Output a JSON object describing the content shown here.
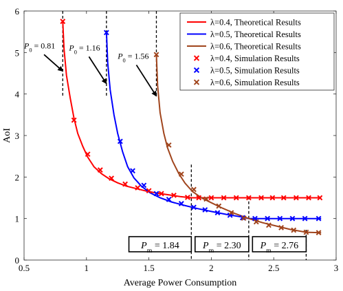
{
  "chart_data": {
    "type": "line",
    "xlabel": "Average Power Consumption",
    "ylabel": "AoI",
    "xlim": [
      0.5,
      3
    ],
    "ylim": [
      0,
      6
    ],
    "xticks": [
      0.5,
      1,
      1.5,
      2,
      2.5,
      3
    ],
    "xtick_labels": [
      "0.5",
      "1",
      "1.5",
      "2",
      "2.5",
      "3"
    ],
    "yticks": [
      0,
      1,
      2,
      3,
      4,
      5,
      6
    ],
    "ytick_labels": [
      "0",
      "1",
      "2",
      "3",
      "4",
      "5",
      "6"
    ],
    "grid": false,
    "legend_position": "top-right",
    "theory": [
      {
        "name": "λ=0.4, Theoretical Results",
        "color": "#ff0000",
        "x": [
          0.81,
          0.82,
          0.84,
          0.87,
          0.9,
          0.93,
          0.97,
          1.01,
          1.06,
          1.12,
          1.18,
          1.25,
          1.32,
          1.4,
          1.48,
          1.57,
          1.66,
          1.75,
          1.84,
          2.0,
          2.3,
          2.6,
          2.88
        ],
        "y": [
          5.75,
          5.1,
          4.45,
          3.9,
          3.42,
          3.05,
          2.74,
          2.48,
          2.25,
          2.08,
          1.96,
          1.86,
          1.78,
          1.72,
          1.66,
          1.61,
          1.57,
          1.53,
          1.5,
          1.5,
          1.5,
          1.5,
          1.5
        ]
      },
      {
        "name": "λ=0.5, Theoretical Results",
        "color": "#0000ff",
        "x": [
          1.16,
          1.17,
          1.19,
          1.22,
          1.25,
          1.29,
          1.33,
          1.38,
          1.44,
          1.51,
          1.59,
          1.68,
          1.78,
          1.89,
          2.0,
          2.12,
          2.24,
          2.3,
          2.5,
          2.7,
          2.88
        ],
        "y": [
          5.48,
          4.75,
          4.1,
          3.5,
          3.05,
          2.6,
          2.25,
          1.98,
          1.78,
          1.62,
          1.5,
          1.4,
          1.32,
          1.24,
          1.17,
          1.1,
          1.04,
          1.0,
          1.0,
          1.0,
          1.0
        ]
      },
      {
        "name": "λ=0.6, Theoretical Results",
        "color": "#a0441c",
        "x": [
          1.56,
          1.57,
          1.59,
          1.62,
          1.65,
          1.69,
          1.74,
          1.79,
          1.85,
          1.92,
          2.0,
          2.09,
          2.19,
          2.3,
          2.41,
          2.52,
          2.63,
          2.76,
          2.88
        ],
        "y": [
          4.95,
          4.2,
          3.55,
          3.05,
          2.7,
          2.38,
          2.08,
          1.85,
          1.65,
          1.5,
          1.38,
          1.25,
          1.12,
          1.0,
          0.9,
          0.82,
          0.74,
          0.67,
          0.66
        ]
      }
    ],
    "simulation": [
      {
        "name": "λ=0.4, Simulation Results",
        "color": "#ff0000",
        "x": [
          0.81,
          0.9,
          1.01,
          1.11,
          1.2,
          1.31,
          1.41,
          1.5,
          1.6,
          1.7,
          1.81,
          1.9,
          2.0,
          2.1,
          2.2,
          2.3,
          2.4,
          2.49,
          2.58,
          2.68,
          2.78,
          2.87
        ],
        "y": [
          5.75,
          3.37,
          2.55,
          2.17,
          1.97,
          1.83,
          1.74,
          1.67,
          1.6,
          1.56,
          1.51,
          1.5,
          1.5,
          1.5,
          1.5,
          1.5,
          1.5,
          1.5,
          1.5,
          1.5,
          1.5,
          1.5
        ]
      },
      {
        "name": "λ=0.5, Simulation Results",
        "color": "#0000ff",
        "x": [
          1.16,
          1.27,
          1.37,
          1.46,
          1.56,
          1.66,
          1.76,
          1.86,
          1.95,
          2.05,
          2.15,
          2.25,
          2.35,
          2.45,
          2.55,
          2.65,
          2.75,
          2.86
        ],
        "y": [
          5.48,
          2.86,
          2.15,
          1.8,
          1.6,
          1.46,
          1.36,
          1.27,
          1.21,
          1.14,
          1.08,
          1.02,
          1.0,
          1.0,
          1.0,
          1.0,
          1.0,
          1.0
        ]
      },
      {
        "name": "λ=0.6, Simulation Results",
        "color": "#a0441c",
        "x": [
          1.56,
          1.66,
          1.76,
          1.86,
          1.96,
          2.06,
          2.16,
          2.26,
          2.36,
          2.46,
          2.56,
          2.66,
          2.76,
          2.86
        ],
        "y": [
          4.95,
          2.77,
          2.07,
          1.7,
          1.47,
          1.3,
          1.14,
          1.01,
          0.92,
          0.84,
          0.78,
          0.72,
          0.67,
          0.66
        ]
      }
    ],
    "p0_lines": [
      {
        "x": 0.81,
        "label": "P_0 = 0.81",
        "sub_base": "P",
        "sub": "0",
        "value": " = 0.81",
        "text_at": [
          0.5,
          5.1
        ],
        "arrow_from": [
          0.66,
          4.95
        ],
        "arrow_to": [
          0.81,
          4.55
        ]
      },
      {
        "x": 1.16,
        "label": "P_0 = 1.16",
        "sub_base": "P",
        "sub": "0",
        "value": " = 1.16",
        "text_at": [
          0.86,
          5.05
        ],
        "arrow_from": [
          1.02,
          4.9
        ],
        "arrow_to": [
          1.16,
          4.25
        ]
      },
      {
        "x": 1.56,
        "label": "P_0 = 1.56",
        "sub_base": "P",
        "sub": "0",
        "value": " = 1.56",
        "text_at": [
          1.25,
          4.85
        ],
        "arrow_from": [
          1.4,
          4.7
        ],
        "arrow_to": [
          1.56,
          3.95
        ]
      }
    ],
    "pm_lines": [
      {
        "x": 1.84,
        "y_top": 2.3,
        "label": "P_m = 1.84",
        "sub_base": "P",
        "sub": "m",
        "value": " = 1.84",
        "box": [
          1.34,
          1.84
        ]
      },
      {
        "x": 2.3,
        "y_top": 1.53,
        "label": "P_m = 2.30",
        "sub_base": "P",
        "sub": "m",
        "value": " = 2.30",
        "box": [
          1.87,
          2.3
        ]
      },
      {
        "x": 2.76,
        "y_top": 0.73,
        "label": "P_m = 2.76",
        "sub_base": "P",
        "sub": "m",
        "value": " = 2.76",
        "box": [
          2.33,
          2.76
        ]
      }
    ],
    "legend": [
      {
        "kind": "line",
        "color": "#ff0000",
        "label": "λ=0.4, Theoretical Results"
      },
      {
        "kind": "line",
        "color": "#0000ff",
        "label": "λ=0.5, Theoretical Results"
      },
      {
        "kind": "line",
        "color": "#a0441c",
        "label": "λ=0.6, Theoretical Results"
      },
      {
        "kind": "marker",
        "color": "#ff0000",
        "label": "λ=0.4, Simulation Results"
      },
      {
        "kind": "marker",
        "color": "#0000ff",
        "label": "λ=0.5, Simulation Results"
      },
      {
        "kind": "marker",
        "color": "#a0441c",
        "label": "λ=0.6, Simulation Results"
      }
    ]
  }
}
